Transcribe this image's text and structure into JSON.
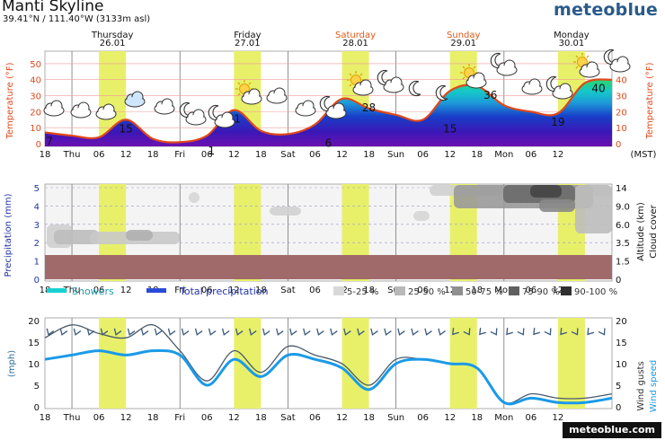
{
  "header": {
    "title": "Manti Skyline",
    "coords": "39.41°N / 111.40°W (3133m asl)",
    "brand": "meteoblue",
    "footer_brand": "meteoblue.com"
  },
  "colors": {
    "weekend": "#e05a1a",
    "highlight": "#e8f06a",
    "precip": "#2233aa",
    "temp_line": "#e0481a"
  },
  "days": [
    {
      "name": "Thursday",
      "date": "26.01",
      "weekend": false
    },
    {
      "name": "Friday",
      "date": "27.01",
      "weekend": false
    },
    {
      "name": "Saturday",
      "date": "28.01",
      "weekend": true
    },
    {
      "name": "Sunday",
      "date": "29.01",
      "weekend": true
    },
    {
      "name": "Monday",
      "date": "30.01",
      "weekend": false
    }
  ],
  "x_ticks": [
    "18",
    "Thu",
    "06",
    "12",
    "18",
    "Fri",
    "06",
    "12",
    "18",
    "Sat",
    "06",
    "12",
    "18",
    "Sun",
    "06",
    "12",
    "18",
    "Mon",
    "06",
    "12"
  ],
  "timezone_label": "(MST)",
  "icons": [
    "cloudy-icon",
    "cloudy-icon",
    "cloudy-icon",
    "partly-cloudy-icon",
    "cloudy-icon",
    "night-cloud-icon",
    "night-cloud-icon",
    "partly-sunny-icon",
    "cloudy-icon",
    "cloudy-icon",
    "night-cloud-icon",
    "partly-sunny-icon",
    "night-cloud-icon",
    "moon-icon",
    "moon-icon",
    "sunny-cloud-icon",
    "night-cloud-icon",
    "cloudy-icon",
    "night-cloud-icon",
    "partly-sunny-icon",
    "night-cloud-icon"
  ],
  "legend": {
    "showers": "Showers",
    "total_precip": "Total precipitation",
    "cloud_bins": [
      "5-25 %",
      "25-50 %",
      "50-75 %",
      "75-90 %",
      "90-100 %"
    ]
  },
  "chart_data": [
    {
      "type": "area",
      "ylabel": "Temperature (°F)",
      "ylim": [
        0,
        55
      ],
      "y_ticks": [
        0,
        10,
        20,
        30,
        40,
        50
      ],
      "x_hours_from_start": [
        0,
        6,
        12,
        18,
        24,
        30,
        36,
        42,
        48,
        54,
        60,
        66,
        72,
        78,
        84,
        90,
        96,
        102,
        108,
        114,
        120,
        126
      ],
      "temperature": [
        7,
        5,
        4,
        15,
        3,
        1,
        5,
        21,
        8,
        6,
        12,
        28,
        22,
        18,
        15,
        33,
        36,
        24,
        20,
        19,
        38,
        40
      ],
      "labels": [
        {
          "t": 1,
          "v": "7"
        },
        {
          "t": 18,
          "v": "15"
        },
        {
          "t": 37,
          "v": "1"
        },
        {
          "t": 42,
          "v": "21"
        },
        {
          "t": 63,
          "v": "6"
        },
        {
          "t": 72,
          "v": "28"
        },
        {
          "t": 90,
          "v": "15"
        },
        {
          "t": 99,
          "v": "36"
        },
        {
          "t": 114,
          "v": "19"
        },
        {
          "t": 123,
          "v": "40"
        }
      ]
    },
    {
      "type": "heatmap",
      "ylabel_left": "Precipitation (mm)",
      "ylabel_right": "Altitude (km) Cloud cover",
      "left_ticks": [
        "0",
        "1",
        "2",
        "3",
        "4",
        "5"
      ],
      "right_ticks": [
        "0",
        "1.5",
        "3.5",
        "6.0",
        "9.0",
        "14"
      ],
      "precipitation_total_mm": 0
    },
    {
      "type": "line",
      "ylabel_left": "(mph)",
      "ylabel_right": "Wind gusts Wind speed",
      "ylim": [
        0,
        20
      ],
      "y_ticks": [
        0,
        5,
        10,
        15,
        20
      ],
      "x_hours_from_start": [
        0,
        6,
        12,
        18,
        24,
        30,
        36,
        42,
        48,
        54,
        60,
        66,
        72,
        78,
        84,
        90,
        96,
        102,
        108,
        114,
        120,
        126
      ],
      "wind_speed": [
        11,
        12,
        13,
        12,
        13,
        12,
        5,
        11,
        7,
        12,
        11,
        9,
        4,
        10,
        11,
        10,
        9,
        1,
        2,
        1,
        1,
        2
      ],
      "wind_gusts": [
        16,
        19,
        17,
        16,
        19,
        13,
        6,
        13,
        8,
        14,
        12,
        10,
        5,
        11,
        11,
        10,
        9,
        1,
        3,
        2,
        2,
        3
      ]
    }
  ]
}
